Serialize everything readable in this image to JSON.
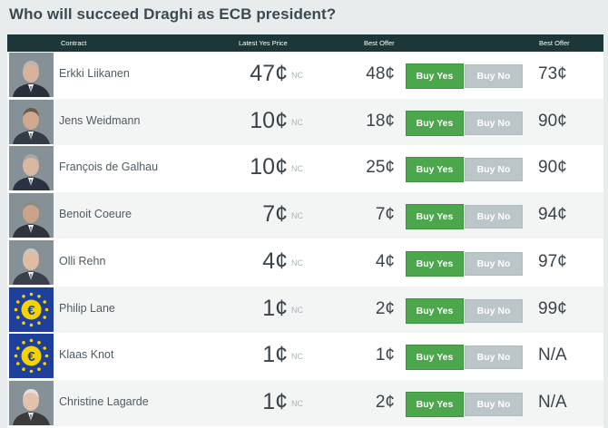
{
  "title": "Who will succeed Draghi as ECB president?",
  "columns": {
    "contract": "Contract",
    "latest_yes": "Latest Yes Price",
    "best_offer_yes": "Best Offer",
    "best_offer_no": "Best Offer"
  },
  "colors": {
    "header": "#1d3637",
    "buy_yes": "#4ca64c",
    "buy_no": "#bcc6c9"
  },
  "rows": [
    {
      "name": "Erkki Liikanen",
      "latest": "47¢",
      "change": "NC",
      "best_yes": "48¢",
      "buy_yes": "Buy Yes",
      "buy_no": "Buy No",
      "best_no": "73¢",
      "photo": "portrait"
    },
    {
      "name": "Jens Weidmann",
      "latest": "10¢",
      "change": "NC",
      "best_yes": "18¢",
      "buy_yes": "Buy Yes",
      "buy_no": "Buy No",
      "best_no": "90¢",
      "photo": "portrait"
    },
    {
      "name": "François de Galhau",
      "latest": "10¢",
      "change": "NC",
      "best_yes": "25¢",
      "buy_yes": "Buy Yes",
      "buy_no": "Buy No",
      "best_no": "90¢",
      "photo": "portrait"
    },
    {
      "name": "Benoit Coeure",
      "latest": "7¢",
      "change": "NC",
      "best_yes": "7¢",
      "buy_yes": "Buy Yes",
      "buy_no": "Buy No",
      "best_no": "94¢",
      "photo": "portrait"
    },
    {
      "name": "Olli Rehn",
      "latest": "4¢",
      "change": "NC",
      "best_yes": "4¢",
      "buy_yes": "Buy Yes",
      "buy_no": "Buy No",
      "best_no": "97¢",
      "photo": "portrait"
    },
    {
      "name": "Philip Lane",
      "latest": "1¢",
      "change": "NC",
      "best_yes": "2¢",
      "buy_yes": "Buy Yes",
      "buy_no": "Buy No",
      "best_no": "99¢",
      "photo": "euro-symbol"
    },
    {
      "name": "Klaas Knot",
      "latest": "1¢",
      "change": "NC",
      "best_yes": "1¢",
      "buy_yes": "Buy Yes",
      "buy_no": "Buy No",
      "best_no": "N/A",
      "photo": "euro-symbol"
    },
    {
      "name": "Christine Lagarde",
      "latest": "1¢",
      "change": "NC",
      "best_yes": "2¢",
      "buy_yes": "Buy Yes",
      "buy_no": "Buy No",
      "best_no": "N/A",
      "photo": "portrait"
    }
  ]
}
